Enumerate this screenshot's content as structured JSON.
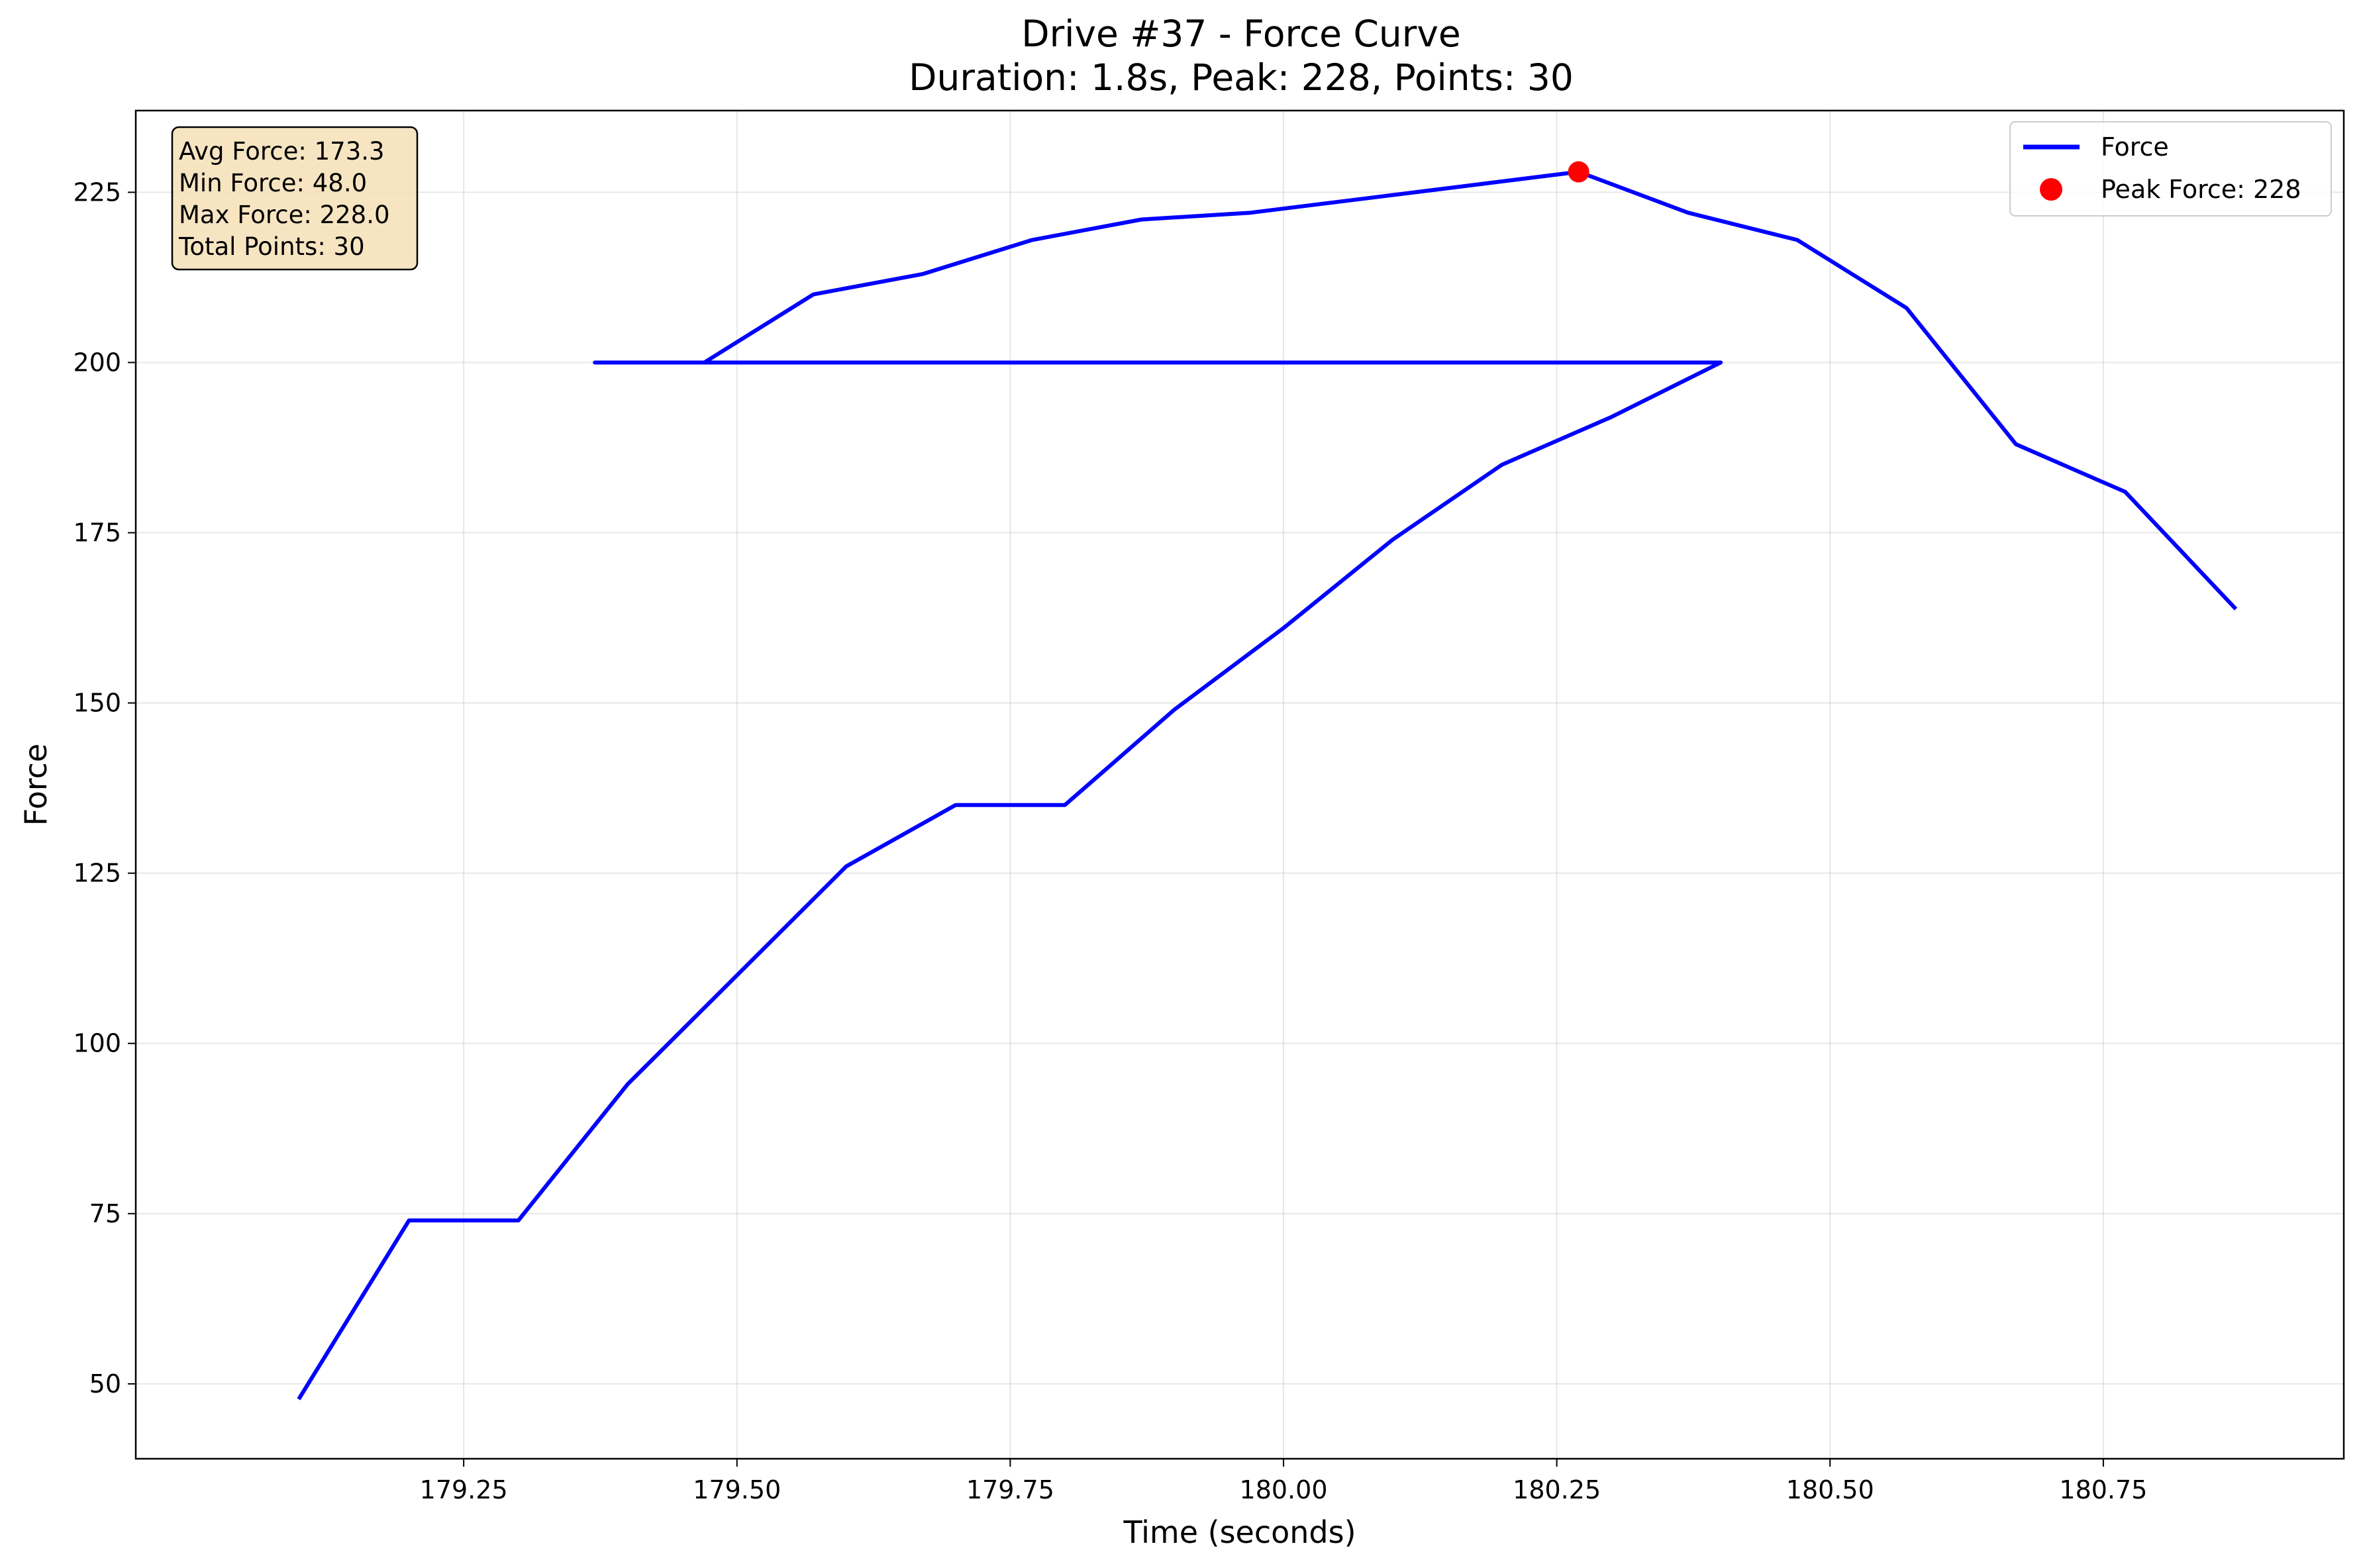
{
  "chart_data": {
    "type": "line",
    "title": "Drive #37 - Force Curve",
    "subtitle": "Duration: 1.8s, Peak: 228, Points: 30",
    "xlabel": "Time (seconds)",
    "ylabel": "Force",
    "xlim": [
      178.95,
      180.97
    ],
    "ylim": [
      39.0,
      237.0
    ],
    "x_ticks": [
      179.25,
      179.5,
      179.75,
      180.0,
      180.25,
      180.5,
      180.75
    ],
    "x_tick_labels": [
      "179.25",
      "179.50",
      "179.75",
      "180.00",
      "180.25",
      "180.50",
      "180.75"
    ],
    "y_ticks": [
      50,
      75,
      100,
      125,
      150,
      175,
      200,
      225
    ],
    "y_tick_labels": [
      "50",
      "75",
      "100",
      "125",
      "150",
      "175",
      "200",
      "225"
    ],
    "grid": true,
    "legend_position": "top-right",
    "series": [
      {
        "name": "Force",
        "kind": "line",
        "color": "#0000ff",
        "x": [
          179.1,
          179.2,
          179.3,
          179.4,
          179.5,
          179.6,
          179.7,
          179.8,
          179.9,
          180.0,
          180.1,
          180.2,
          180.3,
          180.4,
          179.37,
          179.47,
          179.57,
          179.67,
          179.77,
          179.87,
          179.97,
          180.07,
          180.17,
          180.27,
          180.37,
          180.47,
          180.57,
          180.67,
          180.77,
          180.87
        ],
        "y": [
          48,
          74,
          74,
          94,
          110,
          126,
          135,
          135,
          149,
          161,
          174,
          185,
          192,
          200,
          200,
          200,
          210,
          213,
          218,
          221,
          222,
          224,
          226,
          228,
          222,
          218,
          208,
          188,
          181,
          164
        ]
      },
      {
        "name": "Peak Force: 228",
        "kind": "marker",
        "color": "#ff0000",
        "x": [
          180.27
        ],
        "y": [
          228
        ]
      }
    ],
    "stats_box": {
      "lines": [
        "Avg Force: 173.3",
        "Min Force: 48.0",
        "Max Force: 228.0",
        "Total Points: 30"
      ],
      "background": "#f5deb3"
    }
  }
}
